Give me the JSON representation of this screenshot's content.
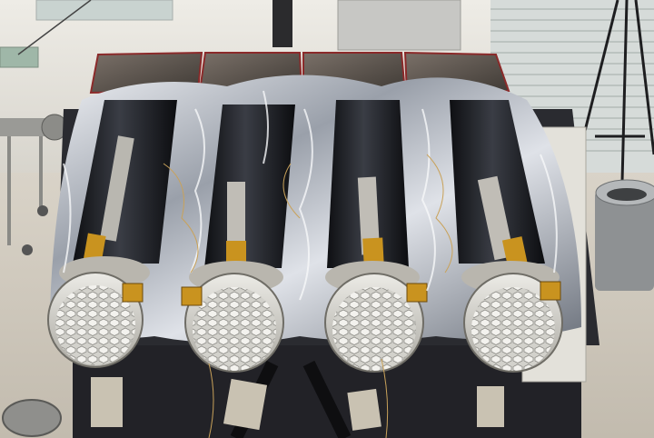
{
  "photo": {
    "subject": "",
    "colors": {
      "floor": "#cfc9bf",
      "wall": "#e7e5df",
      "blanket": "#c9ccd3",
      "blanket_dark": "#7d838d",
      "tube": "#1d1f24",
      "gold": "#c9931f",
      "plate": "#d8d6cf",
      "solar": "#5d564f"
    },
    "telescopes": [
      {
        "id": "telescope-1"
      },
      {
        "id": "telescope-2"
      },
      {
        "id": "telescope-3"
      },
      {
        "id": "telescope-4"
      }
    ]
  }
}
